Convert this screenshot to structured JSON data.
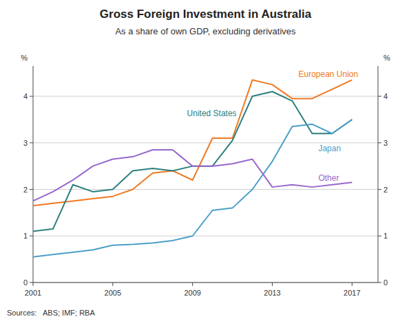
{
  "chart_data": {
    "type": "line",
    "title": "Gross Foreign Investment in Australia",
    "subtitle": "As a share of own GDP, excluding derivatives",
    "source": "Sources:   ABS; IMF; RBA",
    "y_label": "%",
    "y2_label": "%",
    "x": [
      2001,
      2002,
      2003,
      2004,
      2005,
      2006,
      2007,
      2008,
      2009,
      2010,
      2011,
      2012,
      2013,
      2014,
      2015,
      2016,
      2017
    ],
    "xlim": [
      2001,
      2018.3
    ],
    "xticks": [
      2001,
      2005,
      2009,
      2013,
      2017
    ],
    "ylim": [
      0,
      4.65
    ],
    "yticks": [
      0,
      1,
      2,
      3,
      4
    ],
    "y2lim": [
      0,
      4.65
    ],
    "y2ticks": [
      0,
      1,
      2,
      3,
      4
    ],
    "grid": true,
    "series": [
      {
        "name": "European Union",
        "color": "#f07820",
        "values": [
          1.65,
          1.7,
          1.75,
          1.8,
          1.85,
          2.0,
          2.35,
          2.4,
          2.2,
          3.1,
          3.1,
          4.35,
          4.25,
          3.95,
          3.95,
          4.15,
          4.35
        ]
      },
      {
        "name": "United States",
        "color": "#2d7e7e",
        "values": [
          1.1,
          1.15,
          2.1,
          1.95,
          2.0,
          2.4,
          2.45,
          2.4,
          2.5,
          2.5,
          3.05,
          4.0,
          4.1,
          3.9,
          3.2,
          3.2,
          3.5
        ]
      },
      {
        "name": "Japan",
        "color": "#4a9fc8",
        "values": [
          0.55,
          0.6,
          0.65,
          0.7,
          0.8,
          0.82,
          0.85,
          0.9,
          1.0,
          1.55,
          1.6,
          2.0,
          2.6,
          3.35,
          3.4,
          3.2,
          3.5
        ]
      },
      {
        "name": "Other",
        "color": "#9966cc",
        "values": [
          1.75,
          1.95,
          2.2,
          2.5,
          2.65,
          2.7,
          2.85,
          2.85,
          2.5,
          2.5,
          2.55,
          2.65,
          2.05,
          2.1,
          2.05,
          2.1,
          2.15
        ]
      }
    ]
  }
}
